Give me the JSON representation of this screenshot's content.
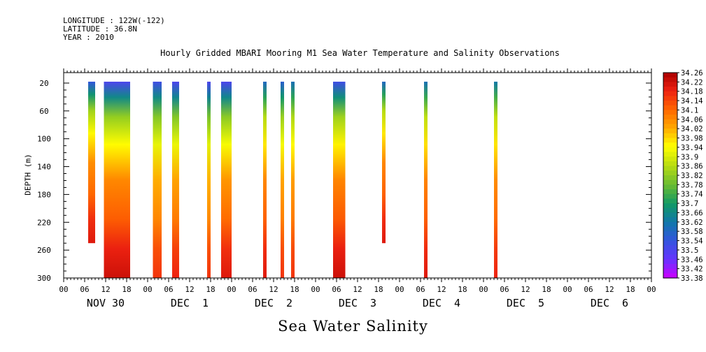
{
  "header": {
    "longitude": "LONGITUDE : 122W(-122)",
    "latitude": "LATITUDE : 36.8N",
    "year": "YEAR : 2010"
  },
  "chart_data": {
    "type": "heatmap",
    "title": "Hourly Gridded MBARI Mooring M1 Sea Water Temperature and Salinity Observations",
    "footer": "Sea Water Salinity",
    "ylabel": "DEPTH (m)",
    "y_ticks": [
      "20",
      "60",
      "100",
      "140",
      "180",
      "220",
      "260",
      "300"
    ],
    "y_range": [
      5,
      300
    ],
    "x_range_hours": [
      0,
      168
    ],
    "x_hour_ticks": [
      "00",
      "06",
      "12",
      "18",
      "00",
      "06",
      "12",
      "18",
      "00",
      "06",
      "12",
      "18",
      "00",
      "06",
      "12",
      "18",
      "00",
      "06",
      "12",
      "18",
      "00",
      "06",
      "12",
      "18",
      "00",
      "06",
      "12",
      "18",
      "00"
    ],
    "x_day_labels": [
      "NOV 30",
      "DEC  1",
      "DEC  2",
      "DEC  3",
      "DEC  4",
      "DEC  5",
      "DEC  6"
    ],
    "colorbar_labels": [
      "34.26",
      "34.22",
      "34.18",
      "34.14",
      "34.1",
      "34.06",
      "34.02",
      "33.98",
      "33.94",
      "33.9",
      "33.86",
      "33.82",
      "33.78",
      "33.74",
      "33.7",
      "33.66",
      "33.62",
      "33.58",
      "33.54",
      "33.5",
      "33.46",
      "33.42",
      "33.38"
    ],
    "value_range": [
      33.38,
      34.26
    ],
    "columns": [
      {
        "x_start_hour": 7,
        "x_end_hour": 9,
        "depth_max": 250,
        "top_value": 33.54,
        "bottom_value": 34.2
      },
      {
        "x_start_hour": 11.5,
        "x_end_hour": 19,
        "depth_max": 300,
        "top_value": 33.5,
        "bottom_value": 34.22
      },
      {
        "x_start_hour": 25.5,
        "x_end_hour": 28,
        "depth_max": 300,
        "top_value": 33.52,
        "bottom_value": 34.16
      },
      {
        "x_start_hour": 31,
        "x_end_hour": 33,
        "depth_max": 300,
        "top_value": 33.5,
        "bottom_value": 34.18
      },
      {
        "x_start_hour": 41,
        "x_end_hour": 42,
        "depth_max": 300,
        "top_value": 33.5,
        "bottom_value": 34.16
      },
      {
        "x_start_hour": 45,
        "x_end_hour": 48,
        "depth_max": 300,
        "top_value": 33.5,
        "bottom_value": 34.2
      },
      {
        "x_start_hour": 57,
        "x_end_hour": 58,
        "depth_max": 300,
        "top_value": 33.58,
        "bottom_value": 34.2
      },
      {
        "x_start_hour": 62,
        "x_end_hour": 63,
        "depth_max": 300,
        "top_value": 33.56,
        "bottom_value": 34.16
      },
      {
        "x_start_hour": 65,
        "x_end_hour": 66,
        "depth_max": 300,
        "top_value": 33.6,
        "bottom_value": 34.16
      },
      {
        "x_start_hour": 77,
        "x_end_hour": 80.5,
        "depth_max": 300,
        "top_value": 33.52,
        "bottom_value": 34.22
      },
      {
        "x_start_hour": 91,
        "x_end_hour": 92,
        "depth_max": 250,
        "top_value": 33.58,
        "bottom_value": 34.2
      },
      {
        "x_start_hour": 103,
        "x_end_hour": 104,
        "depth_max": 300,
        "top_value": 33.6,
        "bottom_value": 34.2
      },
      {
        "x_start_hour": 123,
        "x_end_hour": 124,
        "depth_max": 300,
        "top_value": 33.62,
        "bottom_value": 34.18
      }
    ]
  }
}
